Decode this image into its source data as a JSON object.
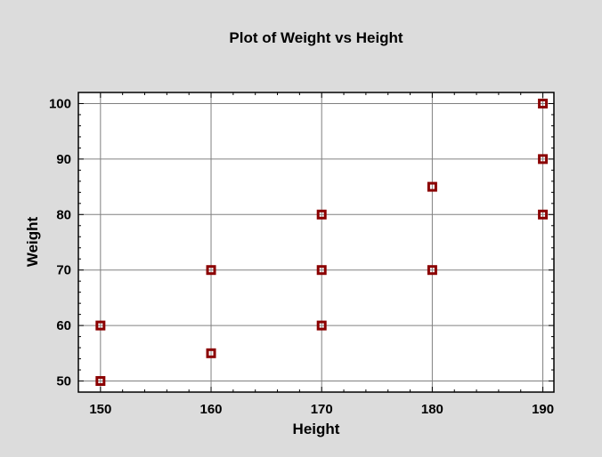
{
  "chart_data": {
    "type": "scatter",
    "title": "Plot of Weight vs Height",
    "xlabel": "Height",
    "ylabel": "Weight",
    "xlim": [
      148,
      191
    ],
    "ylim": [
      48,
      102
    ],
    "x_ticks": [
      150,
      160,
      170,
      180,
      190
    ],
    "y_ticks": [
      50,
      60,
      70,
      80,
      90,
      100
    ],
    "grid": true,
    "marker": "square",
    "marker_color": "#8b0000",
    "points": [
      {
        "x": 150,
        "y": 60
      },
      {
        "x": 150,
        "y": 50
      },
      {
        "x": 160,
        "y": 70
      },
      {
        "x": 160,
        "y": 55
      },
      {
        "x": 170,
        "y": 80
      },
      {
        "x": 170,
        "y": 70
      },
      {
        "x": 170,
        "y": 60
      },
      {
        "x": 180,
        "y": 85
      },
      {
        "x": 180,
        "y": 70
      },
      {
        "x": 190,
        "y": 100
      },
      {
        "x": 190,
        "y": 90
      },
      {
        "x": 190,
        "y": 80
      }
    ]
  },
  "colors": {
    "background": "#dcdcdc",
    "plot_area": "#ffffff",
    "grid": "#808080",
    "marker": "#8b0000"
  }
}
